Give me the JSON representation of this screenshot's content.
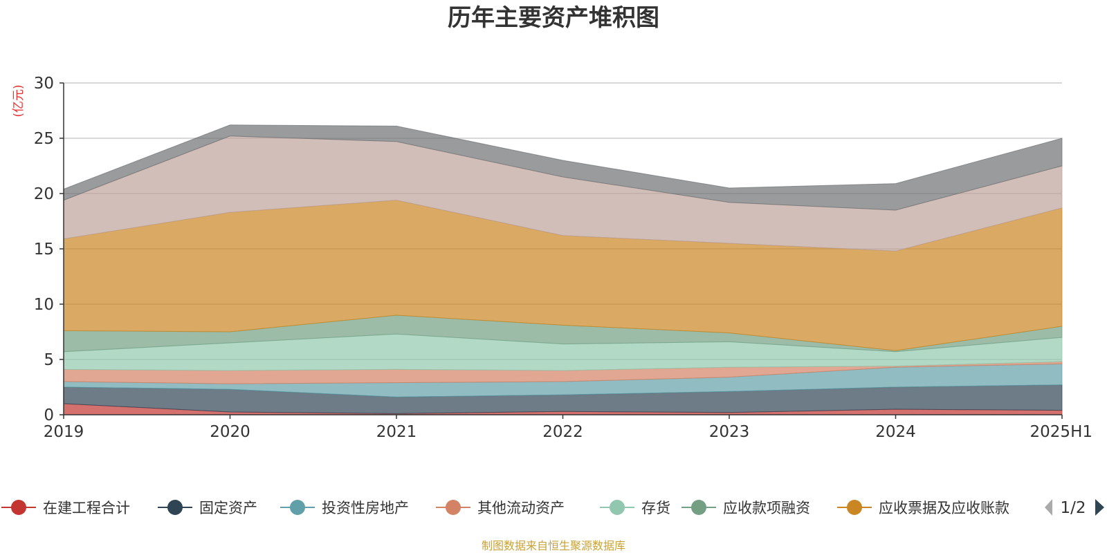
{
  "chart_data": {
    "type": "area",
    "stacked": true,
    "title": "历年主要资产堆积图",
    "unit_label": "(亿元)",
    "categories": [
      "2019",
      "2020",
      "2021",
      "2022",
      "2023",
      "2024",
      "2025H1"
    ],
    "ylim": [
      0,
      30
    ],
    "yticks": [
      0,
      5,
      10,
      15,
      20,
      25,
      30
    ],
    "grid": true,
    "legend_position": "bottom",
    "series": [
      {
        "name": "在建工程合计",
        "color": "#c23531",
        "values": [
          1.0,
          0.25,
          0.1,
          0.3,
          0.2,
          0.5,
          0.4
        ]
      },
      {
        "name": "固定资产",
        "color": "#2f4554",
        "values": [
          1.5,
          2.05,
          1.5,
          1.5,
          1.9,
          2.0,
          2.3
        ]
      },
      {
        "name": "投资性房地产",
        "color": "#61a0a8",
        "values": [
          0.5,
          0.5,
          1.3,
          1.2,
          1.3,
          1.8,
          1.9
        ]
      },
      {
        "name": "其他流动资产",
        "color": "#d48265",
        "values": [
          1.1,
          1.2,
          1.2,
          1.0,
          0.9,
          0.1,
          0.2
        ]
      },
      {
        "name": "存货",
        "color": "#91c7ae",
        "values": [
          1.6,
          2.5,
          3.2,
          2.4,
          2.3,
          1.3,
          2.2
        ]
      },
      {
        "name": "应收款项融资",
        "color": "#749f83",
        "values": [
          1.9,
          1.0,
          1.7,
          1.7,
          0.8,
          0.1,
          1.0
        ]
      },
      {
        "name": "应收票据及应收账款",
        "color": "#ca8622",
        "values": [
          8.3,
          10.8,
          10.4,
          8.1,
          8.1,
          9.0,
          10.7
        ]
      },
      {
        "name": "",
        "color": "#bda29a",
        "values": [
          3.5,
          6.9,
          5.3,
          5.3,
          3.7,
          3.7,
          3.8
        ]
      },
      {
        "name": "",
        "color": "#6e7074",
        "values": [
          1.0,
          1.0,
          1.4,
          1.5,
          1.3,
          2.4,
          2.5
        ]
      }
    ],
    "legend": {
      "visible_items": [
        "在建工程合计",
        "固定资产",
        "投资性房地产",
        "其他流动资产",
        "存货",
        "应收款项融资",
        "应收票据及应收账款"
      ],
      "page": "1/2"
    },
    "source_note": "制图数据来自恒生聚源数据库"
  }
}
